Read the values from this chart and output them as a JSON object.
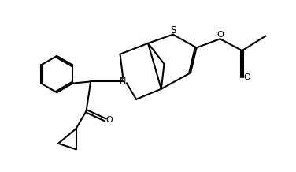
{
  "bg_color": "#ffffff",
  "line_color": "#000000",
  "line_width": 1.5,
  "fig_width": 3.76,
  "fig_height": 2.18,
  "dpi": 100,
  "xlim": [
    0,
    10
  ],
  "ylim": [
    0,
    5.8
  ]
}
